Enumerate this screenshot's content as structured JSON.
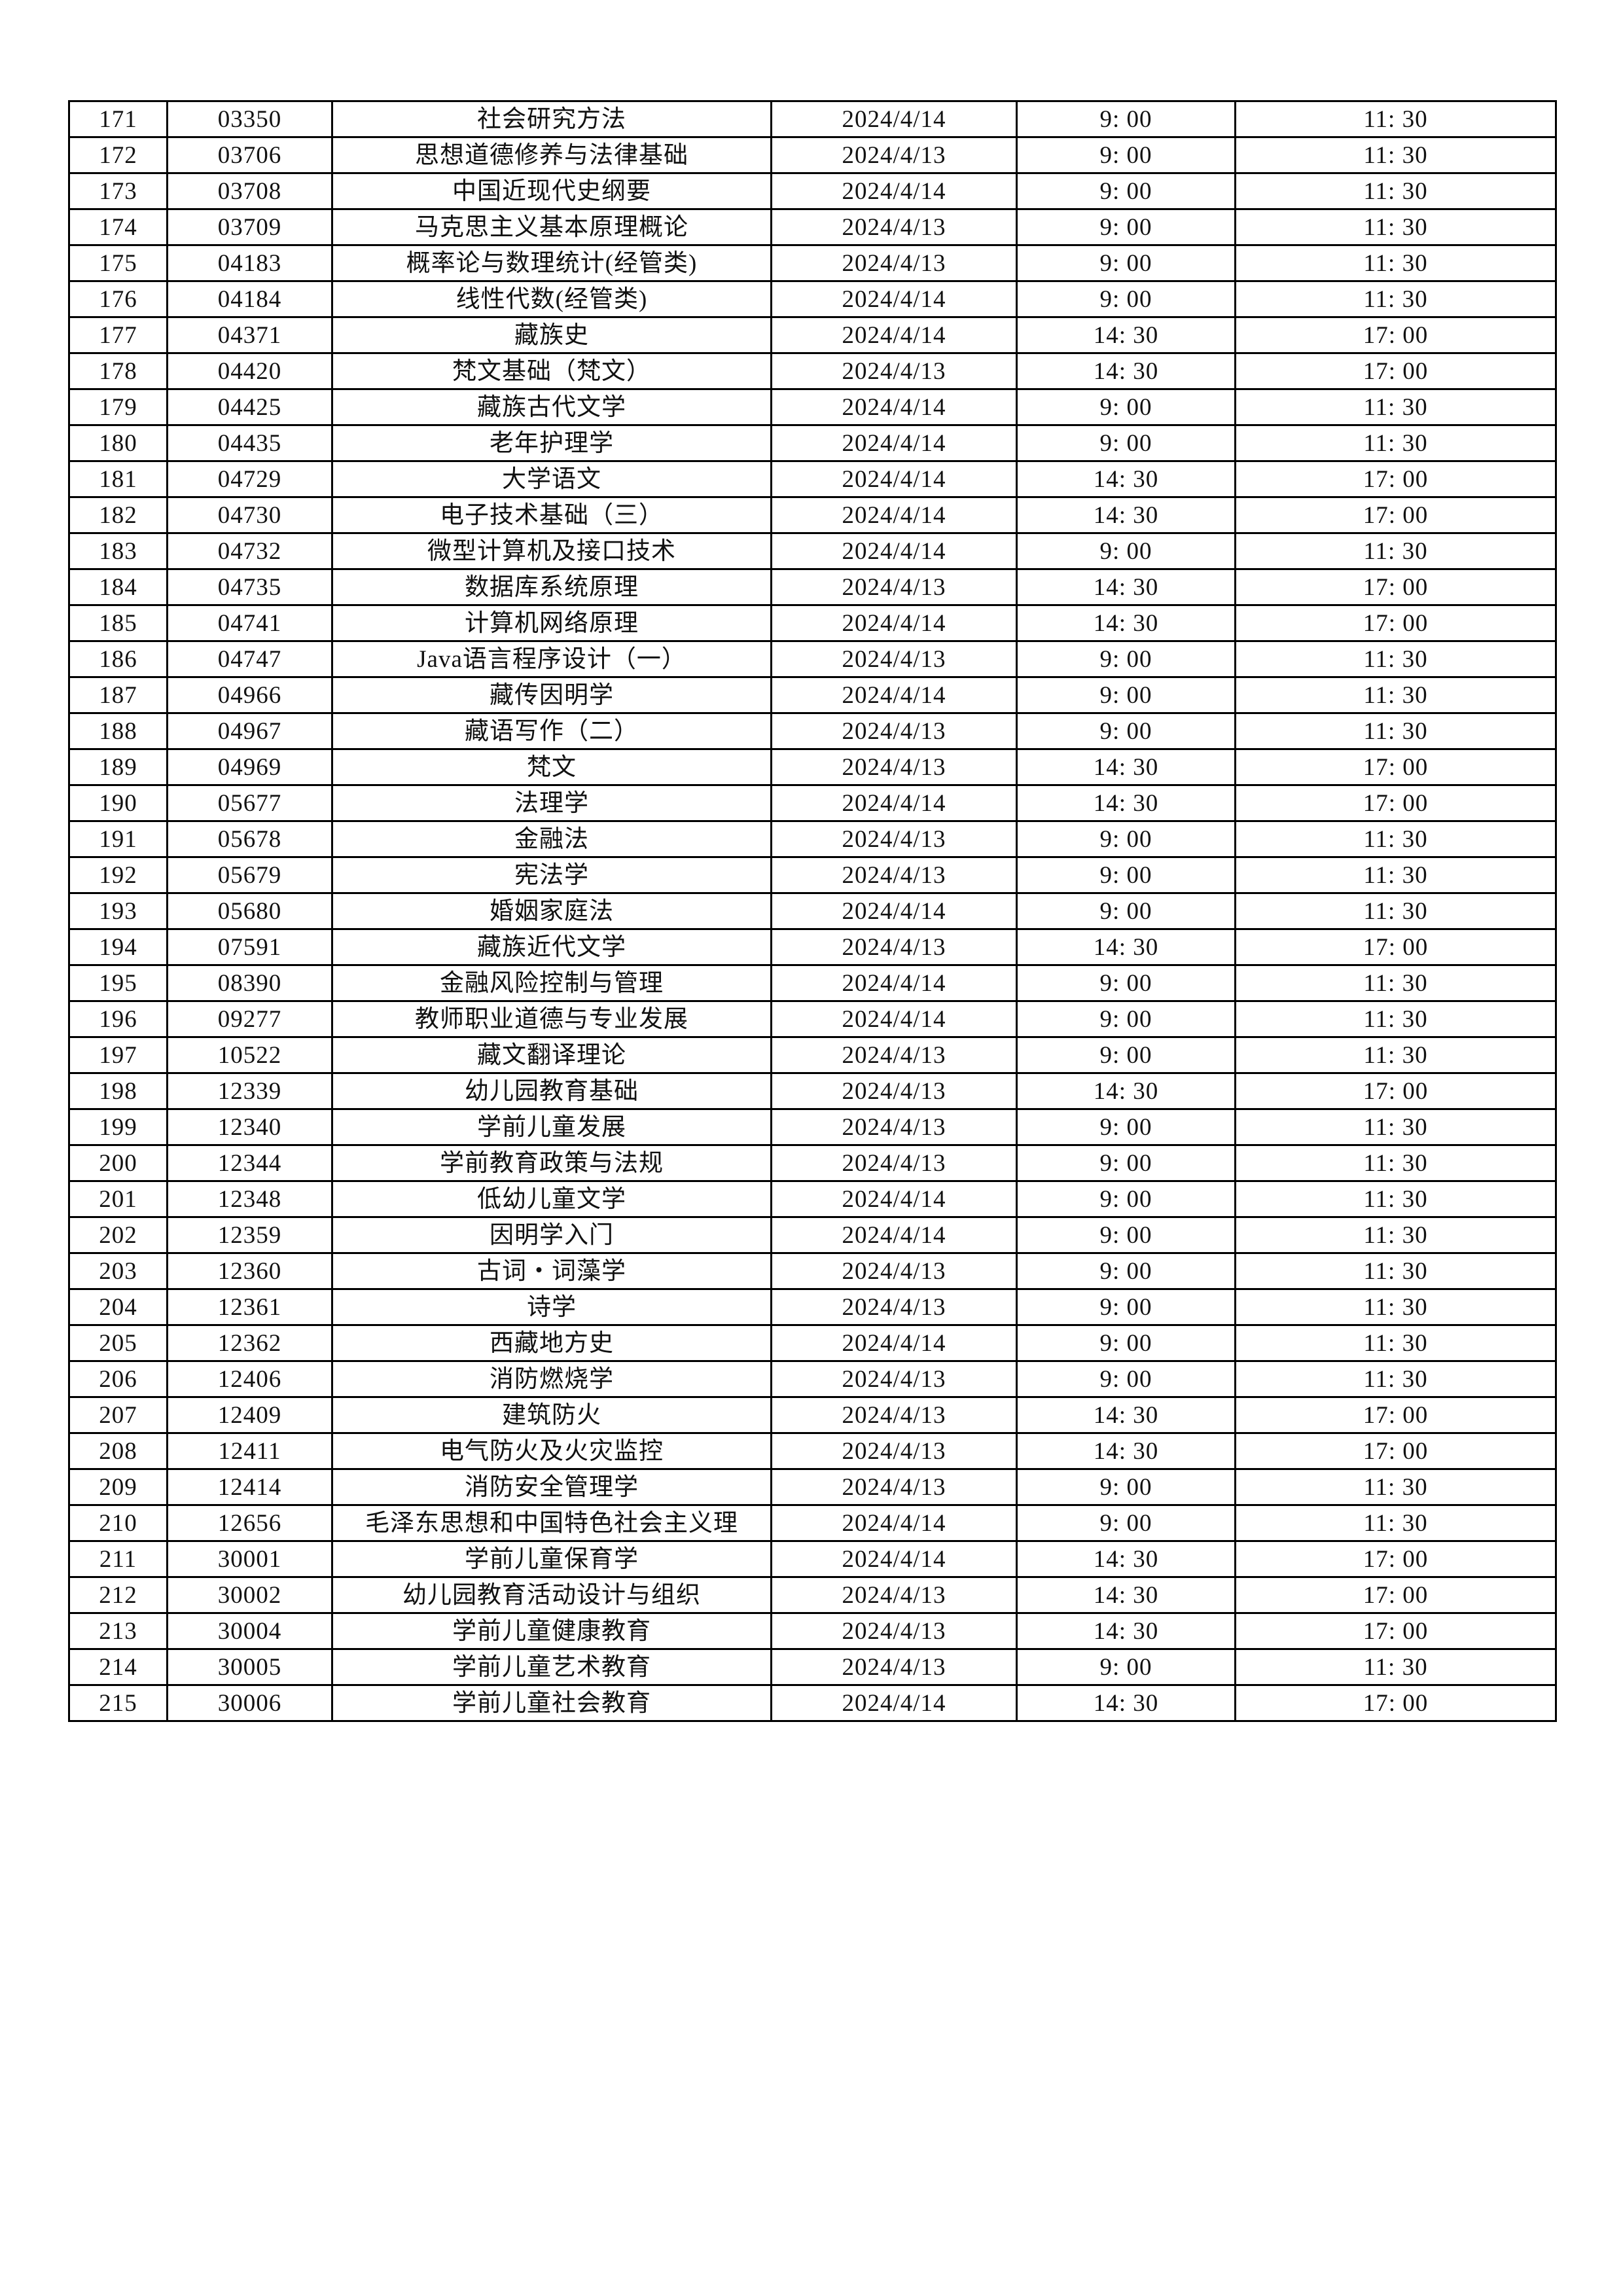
{
  "rows": [
    [
      "171",
      "03350",
      "社会研究方法",
      "2024/4/14",
      "9: 00",
      "11: 30"
    ],
    [
      "172",
      "03706",
      "思想道德修养与法律基础",
      "2024/4/13",
      "9: 00",
      "11: 30"
    ],
    [
      "173",
      "03708",
      "中国近现代史纲要",
      "2024/4/14",
      "9: 00",
      "11: 30"
    ],
    [
      "174",
      "03709",
      "马克思主义基本原理概论",
      "2024/4/13",
      "9: 00",
      "11: 30"
    ],
    [
      "175",
      "04183",
      "概率论与数理统计(经管类)",
      "2024/4/13",
      "9: 00",
      "11: 30"
    ],
    [
      "176",
      "04184",
      "线性代数(经管类)",
      "2024/4/14",
      "9: 00",
      "11: 30"
    ],
    [
      "177",
      "04371",
      "藏族史",
      "2024/4/14",
      "14: 30",
      "17: 00"
    ],
    [
      "178",
      "04420",
      "梵文基础（梵文）",
      "2024/4/13",
      "14: 30",
      "17: 00"
    ],
    [
      "179",
      "04425",
      "藏族古代文学",
      "2024/4/14",
      "9: 00",
      "11: 30"
    ],
    [
      "180",
      "04435",
      "老年护理学",
      "2024/4/14",
      "9: 00",
      "11: 30"
    ],
    [
      "181",
      "04729",
      "大学语文",
      "2024/4/14",
      "14: 30",
      "17: 00"
    ],
    [
      "182",
      "04730",
      "电子技术基础（三）",
      "2024/4/14",
      "14: 30",
      "17: 00"
    ],
    [
      "183",
      "04732",
      "微型计算机及接口技术",
      "2024/4/14",
      "9: 00",
      "11: 30"
    ],
    [
      "184",
      "04735",
      "数据库系统原理",
      "2024/4/13",
      "14: 30",
      "17: 00"
    ],
    [
      "185",
      "04741",
      "计算机网络原理",
      "2024/4/14",
      "14: 30",
      "17: 00"
    ],
    [
      "186",
      "04747",
      "Java语言程序设计（一）",
      "2024/4/13",
      "9: 00",
      "11: 30"
    ],
    [
      "187",
      "04966",
      "藏传因明学",
      "2024/4/14",
      "9: 00",
      "11: 30"
    ],
    [
      "188",
      "04967",
      "藏语写作（二）",
      "2024/4/13",
      "9: 00",
      "11: 30"
    ],
    [
      "189",
      "04969",
      "梵文",
      "2024/4/13",
      "14: 30",
      "17: 00"
    ],
    [
      "190",
      "05677",
      "法理学",
      "2024/4/14",
      "14: 30",
      "17: 00"
    ],
    [
      "191",
      "05678",
      "金融法",
      "2024/4/13",
      "9: 00",
      "11: 30"
    ],
    [
      "192",
      "05679",
      "宪法学",
      "2024/4/13",
      "9: 00",
      "11: 30"
    ],
    [
      "193",
      "05680",
      "婚姻家庭法",
      "2024/4/14",
      "9: 00",
      "11: 30"
    ],
    [
      "194",
      "07591",
      "藏族近代文学",
      "2024/4/13",
      "14: 30",
      "17: 00"
    ],
    [
      "195",
      "08390",
      "金融风险控制与管理",
      "2024/4/14",
      "9: 00",
      "11: 30"
    ],
    [
      "196",
      "09277",
      "教师职业道德与专业发展",
      "2024/4/14",
      "9: 00",
      "11: 30"
    ],
    [
      "197",
      "10522",
      "藏文翻译理论",
      "2024/4/13",
      "9: 00",
      "11: 30"
    ],
    [
      "198",
      "12339",
      "幼儿园教育基础",
      "2024/4/13",
      "14: 30",
      "17: 00"
    ],
    [
      "199",
      "12340",
      "学前儿童发展",
      "2024/4/13",
      "9: 00",
      "11: 30"
    ],
    [
      "200",
      "12344",
      "学前教育政策与法规",
      "2024/4/13",
      "9: 00",
      "11: 30"
    ],
    [
      "201",
      "12348",
      "低幼儿童文学",
      "2024/4/14",
      "9: 00",
      "11: 30"
    ],
    [
      "202",
      "12359",
      "因明学入门",
      "2024/4/14",
      "9: 00",
      "11: 30"
    ],
    [
      "203",
      "12360",
      "古词・词藻学",
      "2024/4/13",
      "9: 00",
      "11: 30"
    ],
    [
      "204",
      "12361",
      "诗学",
      "2024/4/13",
      "9: 00",
      "11: 30"
    ],
    [
      "205",
      "12362",
      "西藏地方史",
      "2024/4/14",
      "9: 00",
      "11: 30"
    ],
    [
      "206",
      "12406",
      "消防燃烧学",
      "2024/4/13",
      "9: 00",
      "11: 30"
    ],
    [
      "207",
      "12409",
      "建筑防火",
      "2024/4/13",
      "14: 30",
      "17: 00"
    ],
    [
      "208",
      "12411",
      "电气防火及火灾监控",
      "2024/4/13",
      "14: 30",
      "17: 00"
    ],
    [
      "209",
      "12414",
      "消防安全管理学",
      "2024/4/13",
      "9: 00",
      "11: 30"
    ],
    [
      "210",
      "12656",
      "毛泽东思想和中国特色社会主义理",
      "2024/4/14",
      "9: 00",
      "11: 30"
    ],
    [
      "211",
      "30001",
      "学前儿童保育学",
      "2024/4/14",
      "14: 30",
      "17: 00"
    ],
    [
      "212",
      "30002",
      "幼儿园教育活动设计与组织",
      "2024/4/13",
      "14: 30",
      "17: 00"
    ],
    [
      "213",
      "30004",
      "学前儿童健康教育",
      "2024/4/13",
      "14: 30",
      "17: 00"
    ],
    [
      "214",
      "30005",
      "学前儿童艺术教育",
      "2024/4/13",
      "9: 00",
      "11: 30"
    ],
    [
      "215",
      "30006",
      "学前儿童社会教育",
      "2024/4/14",
      "14: 30",
      "17: 00"
    ]
  ]
}
